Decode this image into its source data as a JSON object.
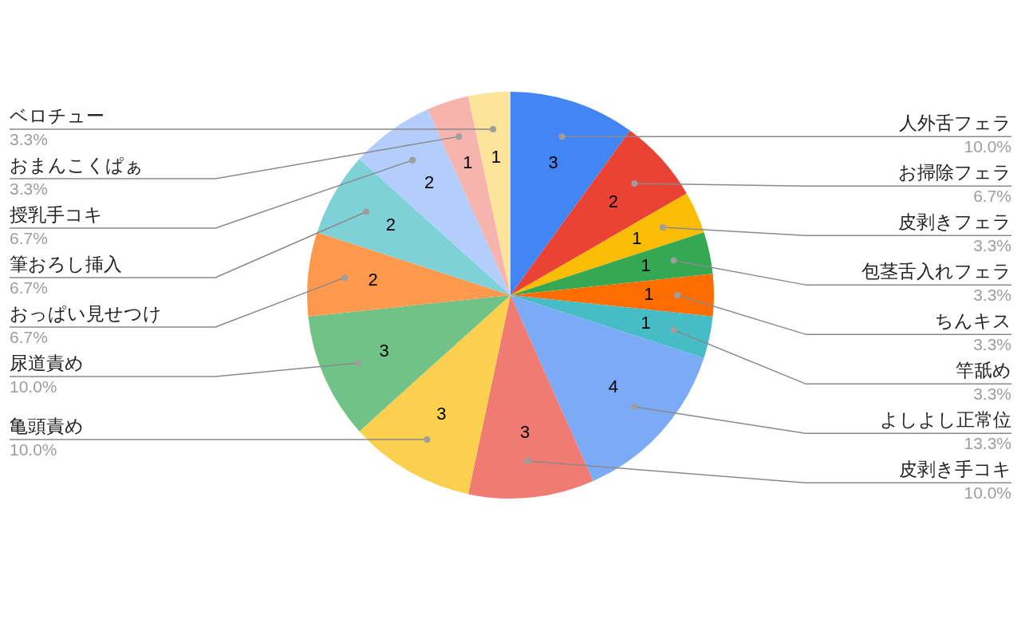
{
  "chart_data": {
    "type": "pie",
    "categories": [
      "人外舌フェラ",
      "お掃除フェラ",
      "皮剥きフェラ",
      "包茎舌入れフェラ",
      "ちんキス",
      "竿舐め",
      "よしよし正常位",
      "皮剥き手コキ",
      "亀頭責め",
      "尿道責め",
      "おっぱい見せつけ",
      "筆おろし挿入",
      "授乳手コキ",
      "おまんこくぱぁ",
      "ベロチュー"
    ],
    "values": [
      3,
      2,
      1,
      1,
      1,
      1,
      4,
      3,
      3,
      3,
      2,
      2,
      2,
      1,
      1
    ],
    "colors": [
      "#4285f4",
      "#ea4335",
      "#fbbc04",
      "#34a853",
      "#ff6d01",
      "#46bdc6",
      "#7baaf7",
      "#f07b72",
      "#fcd04f",
      "#71c287",
      "#ff994d",
      "#7ed1d7",
      "#b3cefb",
      "#f7b4ae",
      "#fde49b"
    ],
    "data_labels": true,
    "annotations": [
      {
        "text": "10.0%",
        "x": "人外舌フェラ"
      },
      {
        "text": "6.7%",
        "x": "お掃除フェラ"
      },
      {
        "text": "3.3%",
        "x": "皮剥きフェラ"
      },
      {
        "text": "3.3%",
        "x": "包茎舌入れフェラ"
      },
      {
        "text": "3.3%",
        "x": "ちんキス"
      },
      {
        "text": "3.3%",
        "x": "竿舐め"
      },
      {
        "text": "13.3%",
        "x": "よしよし正常位"
      },
      {
        "text": "10.0%",
        "x": "皮剥き手コキ"
      },
      {
        "text": "10.0%",
        "x": "亀頭責め"
      },
      {
        "text": "10.0%",
        "x": "尿道責め"
      },
      {
        "text": "6.7%",
        "x": "おっぱい見せつけ"
      },
      {
        "text": "6.7%",
        "x": "筆おろし挿入"
      },
      {
        "text": "6.7%",
        "x": "授乳手コキ"
      },
      {
        "text": "3.3%",
        "x": "おまんこくぱぁ"
      },
      {
        "text": "3.3%",
        "x": "ベロチュー"
      }
    ]
  }
}
